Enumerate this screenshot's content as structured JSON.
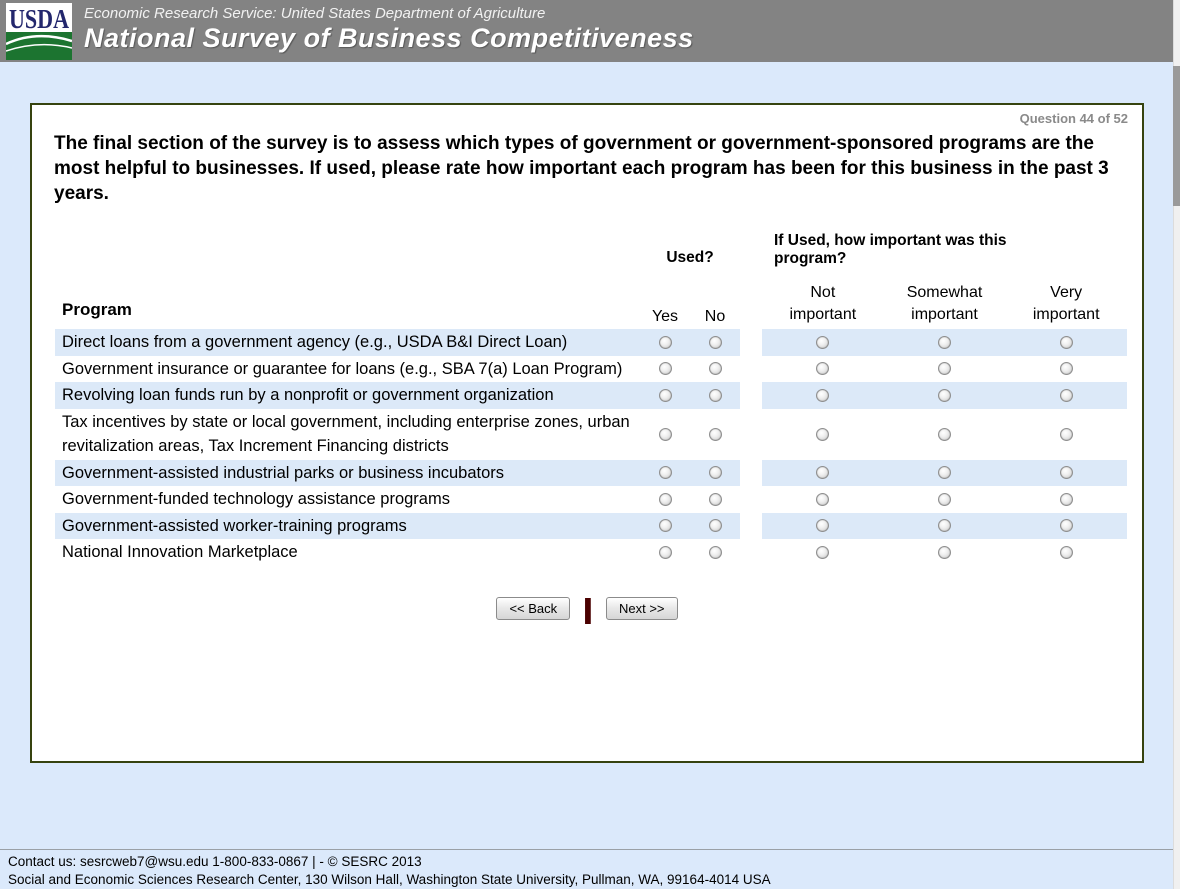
{
  "header": {
    "logo_text": "USDA",
    "agency_line": "Economic Research Service: United States Department of Agriculture",
    "title": "National Survey of Business Competitiveness"
  },
  "survey": {
    "question_counter": "Question 44 of 52",
    "question_text": "The final section of the survey is to assess which types of government or government-sponsored programs are the most helpful to businesses. If used, please rate how important each program has been for this business in the past 3 years.",
    "table": {
      "program_header": "Program",
      "used_header": "Used?",
      "importance_header": "If Used, how important was this program?",
      "used_options": [
        "Yes",
        "No"
      ],
      "importance_options": [
        "Not important",
        "Somewhat important",
        "Very important"
      ],
      "rows": [
        "Direct loans from a government agency (e.g., USDA B&I Direct Loan)",
        "Government insurance or guarantee for loans (e.g., SBA 7(a) Loan Program)",
        "Revolving loan funds run by a nonprofit or government organization",
        "Tax incentives by state or local government, including enterprise zones, urban revitalization areas, Tax Increment Financing districts",
        "Government-assisted industrial parks or business incubators",
        "Government-funded technology assistance programs",
        "Government-assisted worker-training programs",
        "National Innovation Marketplace"
      ]
    },
    "buttons": {
      "back": "<< Back",
      "separator": "|",
      "next": "Next >>"
    }
  },
  "footer": {
    "line1": "Contact us: sesrcweb7@wsu.edu 1-800-833-0867 | - © SESRC 2013",
    "line2": "Social and Economic Sciences Research Center, 130 Wilson Hall, Washington State University, Pullman, WA, 99164-4014 USA"
  },
  "colors": {
    "header_bg": "#838383",
    "page_bg": "#dbe9fb",
    "row_highlight": "#dce9f8",
    "panel_border": "#36430f",
    "usda_navy": "#23276d",
    "usda_green": "#1c7430",
    "separator_maroon": "#4a0000"
  }
}
